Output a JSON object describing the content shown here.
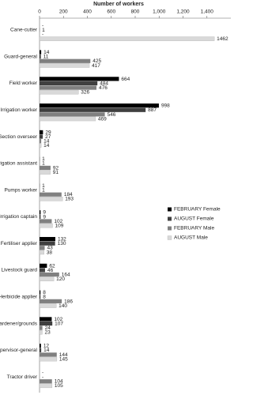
{
  "chart_data": {
    "type": "bar",
    "orientation": "horizontal",
    "x_label": "Number of workers",
    "categories": [
      "Cane-cutter",
      "Guard-general",
      "Field worker",
      "Irrigation worker",
      "Section overseer",
      "Irrigation assistant",
      "Pumps worker",
      "Irrigation captain",
      "Fertiliser applier",
      "Livestock guard",
      "Herbicide applier",
      "Gardener/grounds",
      "Supervisor-general",
      "Tractor driver"
    ],
    "series": [
      {
        "name": "FEBRUARY Female",
        "color": "#000000",
        "values": [
          null,
          14,
          664,
          998,
          29,
          1,
          1,
          9,
          132,
          62,
          8,
          102,
          12,
          null
        ],
        "value_labels": [
          "-",
          null,
          null,
          null,
          null,
          null,
          null,
          null,
          null,
          null,
          null,
          null,
          null,
          "-"
        ]
      },
      {
        "name": "AUGUST Female",
        "color": "#404040",
        "values": [
          1,
          11,
          484,
          887,
          27,
          1,
          1,
          9,
          130,
          46,
          8,
          107,
          14,
          null
        ],
        "value_labels": [
          null,
          null,
          null,
          null,
          null,
          null,
          null,
          null,
          null,
          null,
          null,
          null,
          null,
          "-"
        ]
      },
      {
        "name": "FEBRUARY Male",
        "color": "#808080",
        "values": [
          null,
          425,
          476,
          546,
          14,
          92,
          184,
          102,
          43,
          164,
          186,
          24,
          144,
          104
        ],
        "value_labels": [
          "-",
          null,
          null,
          null,
          null,
          null,
          null,
          null,
          null,
          null,
          null,
          null,
          null,
          null
        ]
      },
      {
        "name": "AUGUST Male",
        "color": "#d9d9d9",
        "values": [
          1462,
          417,
          326,
          469,
          14,
          91,
          193,
          109,
          38,
          120,
          140,
          23,
          145,
          105
        ]
      }
    ],
    "xlim": [
      0,
      1600
    ],
    "xticks": [
      0,
      200,
      400,
      600,
      800,
      {
        "value": 1000,
        "label": "1,000"
      },
      {
        "value": 1200,
        "label": "1,200"
      },
      {
        "value": 1400,
        "label": "1,400"
      }
    ],
    "legend": "right"
  }
}
